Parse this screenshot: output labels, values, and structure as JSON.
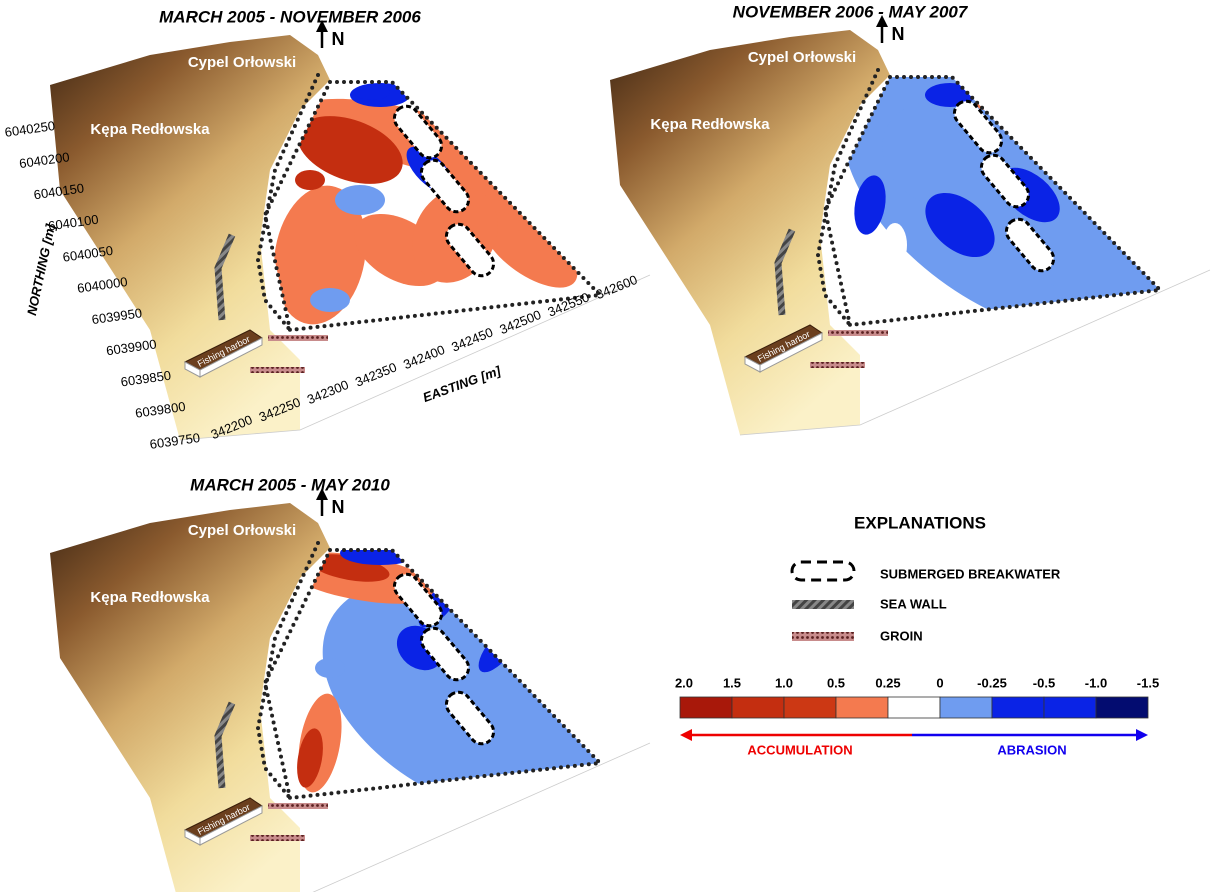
{
  "panels": [
    {
      "title": "MARCH 2005 - NOVEMBER 2006",
      "north": "N",
      "places": [
        "Cypel Orłowski",
        "Kępa Redłowska"
      ],
      "harbor": "Fishing harbor"
    },
    {
      "title": "NOVEMBER 2006 - MAY 2007",
      "north": "N",
      "places": [
        "Cypel Orłowski",
        "Kępa Redłowska"
      ],
      "harbor": "Fishing harbor"
    },
    {
      "title": "MARCH 2005 - MAY 2010",
      "north": "N",
      "places": [
        "Cypel Orłowski",
        "Kępa Redłowska"
      ],
      "harbor": "Fishing harbor"
    }
  ],
  "axes": {
    "northing_label": "NORTHING [m]",
    "northing_ticks": [
      6040250,
      6040200,
      6040150,
      6040100,
      6040050,
      6040000,
      6039950,
      6039900,
      6039850,
      6039800,
      6039750
    ],
    "easting_label": "EASTING [m]",
    "easting_ticks": [
      342200,
      342250,
      342300,
      342350,
      342400,
      342450,
      342500,
      342550,
      342600
    ]
  },
  "explanations": {
    "title": "EXPLANATIONS",
    "items": [
      "SUBMERGED BREAKWATER",
      "SEA WALL",
      "GROIN"
    ]
  },
  "scale": {
    "labels": [
      "2.0",
      "1.5",
      "1.0",
      "0.5",
      "0.25",
      "0",
      "-0.25",
      "-0.5",
      "-1.0",
      "-1.5"
    ],
    "colors": [
      "#a8180a",
      "#c42e10",
      "#cc3814",
      "#f47a4f",
      "#ffffff",
      "#6f9cf0",
      "#0a23e6",
      "#0a23e6",
      "#030c70"
    ],
    "left": "ACCUMULATION",
    "right": "ABRASION"
  }
}
